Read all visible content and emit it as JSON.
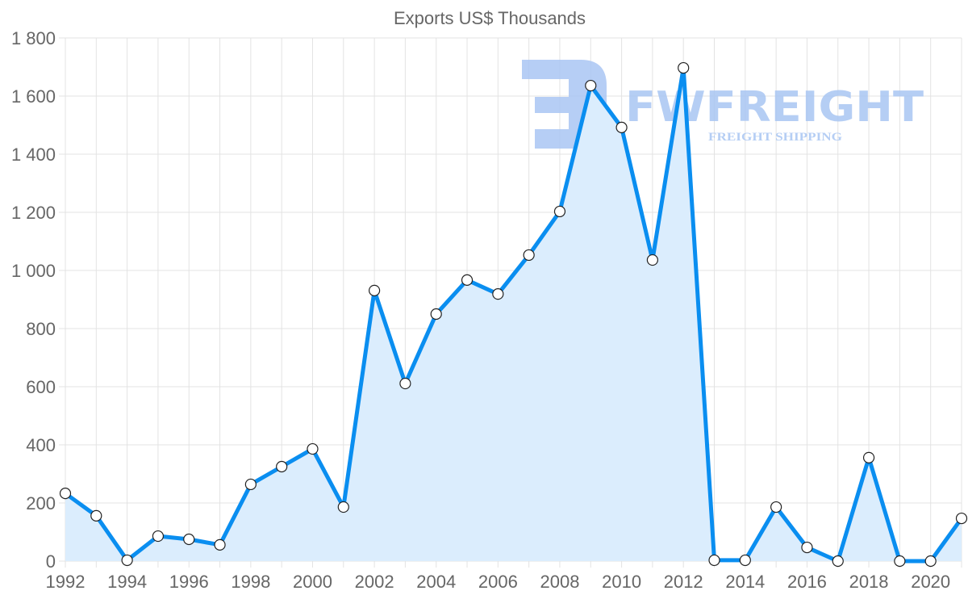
{
  "chart_data": {
    "type": "area",
    "title": "Exports US$ Thousands",
    "xlabel": "",
    "ylabel": "",
    "x": [
      1992,
      1993,
      1994,
      1995,
      1996,
      1997,
      1998,
      1999,
      2000,
      2001,
      2002,
      2003,
      2004,
      2005,
      2006,
      2007,
      2008,
      2009,
      2010,
      2011,
      2012,
      2013,
      2014,
      2015,
      2016,
      2017,
      2018,
      2019,
      2020,
      2021
    ],
    "series": [
      {
        "name": "Exports US$ Thousands",
        "color": "#0a8ef0",
        "fill": "#dbedfd",
        "values": [
          233,
          156,
          3,
          86,
          75,
          56,
          264,
          325,
          386,
          186,
          931,
          611,
          850,
          967,
          919,
          1053,
          1203,
          1636,
          1492,
          1036,
          1697,
          3,
          3,
          186,
          47,
          0,
          356,
          0,
          0,
          147
        ]
      }
    ],
    "ylim": [
      0,
      1800
    ],
    "xlim": [
      1992,
      2021
    ],
    "yticks": [
      0,
      200,
      400,
      600,
      800,
      1000,
      1200,
      1400,
      1600,
      1800
    ],
    "ytick_labels": [
      "0",
      "200",
      "400",
      "600",
      "800",
      "1 000",
      "1 200",
      "1 400",
      "1 600",
      "1 800"
    ],
    "xticks": [
      1992,
      1994,
      1996,
      1998,
      2000,
      2002,
      2004,
      2006,
      2008,
      2010,
      2012,
      2014,
      2016,
      2018,
      2020
    ],
    "xtick_labels": [
      "1992",
      "1994",
      "1996",
      "1998",
      "2000",
      "2002",
      "2004",
      "2006",
      "2008",
      "2010",
      "2012",
      "2014",
      "2016",
      "2018",
      "2020"
    ],
    "grid": true,
    "legend": "none"
  },
  "watermark": {
    "brand": "FWFREIGHT",
    "tagline": "FREIGHT SHIPPING",
    "color": "#a9c6f3"
  }
}
